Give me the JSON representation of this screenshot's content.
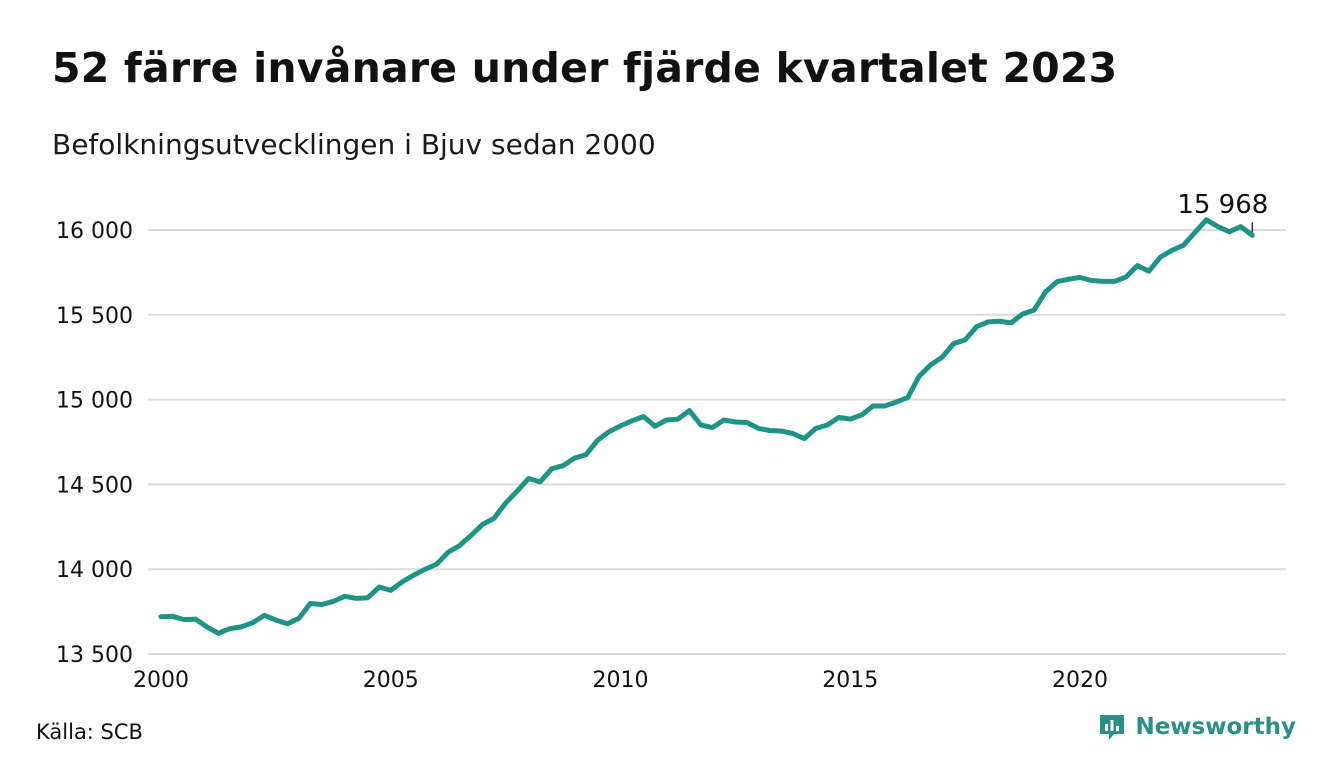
{
  "header": {
    "title": "52 färre invånare under fjärde kvartalet 2023",
    "subtitle": "Befolkningsutvecklingen i Bjuv sedan 2000"
  },
  "footer": {
    "source": "Källa: SCB",
    "brand": "Newsworthy",
    "brand_icon": "newsworthy-logo-icon"
  },
  "colors": {
    "line": "#1f9484",
    "grid": "#dcdcdc",
    "brand": "#2a8f84"
  },
  "chart_data": {
    "type": "line",
    "title": "52 färre invånare under fjärde kvartalet 2023",
    "subtitle": "Befolkningsutvecklingen i Bjuv sedan 2000",
    "xlabel": "",
    "ylabel": "",
    "ylim": [
      13500,
      16000
    ],
    "xlim": [
      2000,
      2024
    ],
    "grid": true,
    "legend": "none",
    "y_ticks": [
      13500,
      14000,
      14500,
      15000,
      15500,
      16000
    ],
    "y_tick_labels": [
      "13 500",
      "14 000",
      "14 500",
      "15 000",
      "15 500",
      "16 000"
    ],
    "x_ticks": [
      2000,
      2005,
      2010,
      2015,
      2020
    ],
    "x_tick_labels": [
      "2000",
      "2005",
      "2010",
      "2015",
      "2020"
    ],
    "end_label": "15 968",
    "series": [
      {
        "frequency": "quarterly",
        "x_start": "2000-Q1",
        "values": [
          13720,
          13722,
          13703,
          13706,
          13660,
          13622,
          13650,
          13660,
          13685,
          13728,
          13700,
          13678,
          13710,
          13798,
          13792,
          13810,
          13840,
          13828,
          13832,
          13895,
          13875,
          13925,
          13965,
          14000,
          14030,
          14100,
          14140,
          14200,
          14265,
          14300,
          14390,
          14460,
          14535,
          14515,
          14592,
          14610,
          14655,
          14675,
          14760,
          14810,
          14845,
          14875,
          14900,
          14843,
          14880,
          14885,
          14935,
          14850,
          14835,
          14880,
          14868,
          14865,
          14830,
          14818,
          14815,
          14800,
          14770,
          14830,
          14850,
          14895,
          14885,
          14910,
          14962,
          14962,
          14985,
          15012,
          15138,
          15205,
          15250,
          15330,
          15352,
          15430,
          15458,
          15462,
          15452,
          15505,
          15528,
          15635,
          15695,
          15710,
          15720,
          15702,
          15697,
          15697,
          15723,
          15790,
          15757,
          15840,
          15880,
          15910,
          15985,
          16060,
          16020,
          15990,
          16020,
          15968
        ]
      }
    ]
  }
}
